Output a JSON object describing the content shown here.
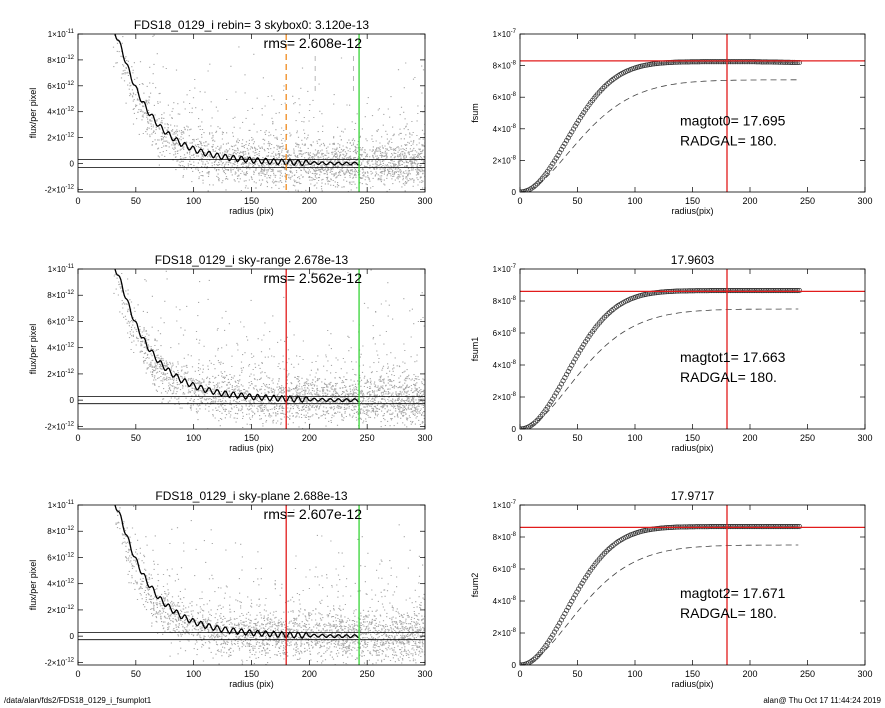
{
  "footer": {
    "left": "/data/alan/fds2/FDS18_0129_i_fsumplot1",
    "right": "alan@  Thu Oct 17 11:44:24 2019"
  },
  "colors": {
    "scatter": "#a8a8a8",
    "profile": "#000000",
    "red": "#e21b1b",
    "green": "#35d435",
    "orange": "#f08a1e"
  },
  "chart_data": [
    {
      "type": "scatter",
      "panel": "profile-1",
      "title": "FDS18_0129_i rebin= 3    skybox0:  3.120e-13",
      "annotation": "rms= 2.608e-12",
      "xlabel": "radius (pix)",
      "ylabel": "flux/per pixel",
      "xlim": [
        0,
        300
      ],
      "ylim": [
        -2.2e-12,
        1e-11
      ],
      "xticks": [
        "0",
        "50",
        "100",
        "150",
        "200",
        "250",
        "300"
      ],
      "yticks": [
        {
          "v": 1e-11,
          "m": "1×10",
          "e": "-11"
        },
        {
          "v": 8e-12,
          "m": "8×10",
          "e": "-12"
        },
        {
          "v": 6e-12,
          "m": "6×10",
          "e": "-12"
        },
        {
          "v": 4e-12,
          "m": "4×10",
          "e": "-12"
        },
        {
          "v": 2e-12,
          "m": "2×10",
          "e": "-12"
        },
        {
          "v": 0,
          "m": "0",
          "e": ""
        },
        {
          "v": -2e-12,
          "m": "-2×10",
          "e": "-12"
        }
      ],
      "sky_lines": [
        3.1e-13,
        -3.1e-13
      ],
      "vlines": [
        {
          "x": 180,
          "color": "orange",
          "style": "dashed"
        },
        {
          "x": 243,
          "color": "green",
          "style": "solid"
        }
      ],
      "profile": {
        "x": [
          30,
          35,
          40,
          45,
          50,
          55,
          60,
          70,
          80,
          90,
          100,
          110,
          120,
          130,
          140,
          150,
          160,
          170,
          180,
          200,
          220,
          243
        ],
        "y": [
          1.05e-11,
          9.5e-12,
          8.2e-12,
          6.9e-12,
          5.8e-12,
          4.9e-12,
          4.1e-12,
          2.9e-12,
          2.1e-12,
          1.5e-12,
          1.1e-12,
          8e-13,
          6e-13,
          4.5e-13,
          3.5e-13,
          2.5e-13,
          2e-13,
          1.5e-13,
          1e-13,
          5e-14,
          0,
          0
        ]
      }
    },
    {
      "type": "line",
      "panel": "fsum-1",
      "title": "",
      "xlabel": "radius(pix)",
      "ylabel": "fsum",
      "xlim": [
        0,
        300
      ],
      "ylim": [
        0,
        1e-07
      ],
      "xticks": [
        "0",
        "50",
        "100",
        "150",
        "200",
        "250",
        "300"
      ],
      "yticks": [
        {
          "v": 1e-07,
          "m": "1×10",
          "e": "-7"
        },
        {
          "v": 8e-08,
          "m": "8×10",
          "e": "-8"
        },
        {
          "v": 6e-08,
          "m": "6×10",
          "e": "-8"
        },
        {
          "v": 4e-08,
          "m": "4×10",
          "e": "-8"
        },
        {
          "v": 2e-08,
          "m": "2×10",
          "e": "-8"
        },
        {
          "v": 0,
          "m": "0",
          "e": ""
        }
      ],
      "hline": 8.3e-08,
      "vline": 180,
      "annotations": [
        "magtot0=  17.695",
        "RADGAL=    180."
      ],
      "curve_final": 8.25e-08,
      "curve_peak_r": 200,
      "dashed_final": 7.1e-08,
      "end_x": 243
    },
    {
      "type": "scatter",
      "panel": "profile-2",
      "title": "FDS18_0129_i sky-range  2.678e-13",
      "annotation": "rms= 2.562e-12",
      "xlabel": "radius (pix)",
      "ylabel": "flux/per pixel",
      "xlim": [
        0,
        300
      ],
      "ylim": [
        -2.2e-12,
        1e-11
      ],
      "xticks": [
        "0",
        "50",
        "100",
        "150",
        "200",
        "250",
        "300"
      ],
      "yticks": [
        {
          "v": 1e-11,
          "m": "1×10",
          "e": "-11"
        },
        {
          "v": 8e-12,
          "m": "8×10",
          "e": "-12"
        },
        {
          "v": 6e-12,
          "m": "6×10",
          "e": "-12"
        },
        {
          "v": 4e-12,
          "m": "4×10",
          "e": "-12"
        },
        {
          "v": 2e-12,
          "m": "2×10",
          "e": "-12"
        },
        {
          "v": 0,
          "m": "0",
          "e": ""
        },
        {
          "v": -2e-12,
          "m": "-2×10",
          "e": "-12"
        }
      ],
      "sky_lines": [
        2.7e-13,
        -2.7e-13
      ],
      "vlines": [
        {
          "x": 180,
          "color": "red",
          "style": "solid"
        },
        {
          "x": 243,
          "color": "green",
          "style": "solid"
        }
      ],
      "profile": {
        "x": [
          30,
          35,
          40,
          45,
          50,
          55,
          60,
          70,
          80,
          90,
          100,
          110,
          120,
          130,
          140,
          150,
          160,
          170,
          180,
          200,
          220,
          243
        ],
        "y": [
          1.05e-11,
          9.5e-12,
          8.2e-12,
          6.9e-12,
          5.8e-12,
          4.9e-12,
          4.1e-12,
          2.9e-12,
          2.1e-12,
          1.5e-12,
          1.1e-12,
          8e-13,
          6e-13,
          4.5e-13,
          3.5e-13,
          2.5e-13,
          2e-13,
          1.5e-13,
          1e-13,
          5e-14,
          0,
          0
        ]
      }
    },
    {
      "type": "line",
      "panel": "fsum-2",
      "title": "17.9603",
      "xlabel": "radius(pix)",
      "ylabel": "fsum1",
      "xlim": [
        0,
        300
      ],
      "ylim": [
        0,
        1e-07
      ],
      "xticks": [
        "0",
        "50",
        "100",
        "150",
        "200",
        "250",
        "300"
      ],
      "yticks": [
        {
          "v": 1e-07,
          "m": "1×10",
          "e": "-7"
        },
        {
          "v": 8e-08,
          "m": "8×10",
          "e": "-8"
        },
        {
          "v": 6e-08,
          "m": "6×10",
          "e": "-8"
        },
        {
          "v": 4e-08,
          "m": "4×10",
          "e": "-8"
        },
        {
          "v": 2e-08,
          "m": "2×10",
          "e": "-8"
        },
        {
          "v": 0,
          "m": "0",
          "e": ""
        }
      ],
      "hline": 8.6e-08,
      "vline": 180,
      "annotations": [
        "magtot1=  17.663",
        "RADGAL=    180."
      ],
      "curve_final": 8.65e-08,
      "curve_peak_r": 243,
      "dashed_final": 7.5e-08,
      "end_x": 243
    },
    {
      "type": "scatter",
      "panel": "profile-3",
      "title": "FDS18_0129_i sky-plane  2.688e-13",
      "annotation": "rms= 2.607e-12",
      "xlabel": "radius (pix)",
      "ylabel": "flux/per pixel",
      "xlim": [
        0,
        300
      ],
      "ylim": [
        -2.2e-12,
        1e-11
      ],
      "xticks": [
        "0",
        "50",
        "100",
        "150",
        "200",
        "250",
        "300"
      ],
      "yticks": [
        {
          "v": 1e-11,
          "m": "1×10",
          "e": "-11"
        },
        {
          "v": 8e-12,
          "m": "8×10",
          "e": "-12"
        },
        {
          "v": 6e-12,
          "m": "6×10",
          "e": "-12"
        },
        {
          "v": 4e-12,
          "m": "4×10",
          "e": "-12"
        },
        {
          "v": 2e-12,
          "m": "2×10",
          "e": "-12"
        },
        {
          "v": 0,
          "m": "0",
          "e": ""
        },
        {
          "v": -2e-12,
          "m": "-2×10",
          "e": "-12"
        }
      ],
      "sky_lines": [
        2.7e-13,
        -2.7e-13
      ],
      "vlines": [
        {
          "x": 180,
          "color": "red",
          "style": "solid"
        },
        {
          "x": 243,
          "color": "green",
          "style": "solid"
        }
      ],
      "profile": {
        "x": [
          30,
          35,
          40,
          45,
          50,
          55,
          60,
          70,
          80,
          90,
          100,
          110,
          120,
          130,
          140,
          150,
          160,
          170,
          180,
          200,
          220,
          243
        ],
        "y": [
          1.05e-11,
          9.5e-12,
          8.2e-12,
          6.9e-12,
          5.8e-12,
          4.9e-12,
          4.1e-12,
          2.9e-12,
          2.1e-12,
          1.5e-12,
          1.1e-12,
          8e-13,
          6e-13,
          4.5e-13,
          3.5e-13,
          2.5e-13,
          2e-13,
          1.5e-13,
          1e-13,
          5e-14,
          0,
          0
        ]
      }
    },
    {
      "type": "line",
      "panel": "fsum-3",
      "title": "17.9717",
      "xlabel": "radius(pix)",
      "ylabel": "fsum2",
      "xlim": [
        0,
        300
      ],
      "ylim": [
        0,
        1e-07
      ],
      "xticks": [
        "0",
        "50",
        "100",
        "150",
        "200",
        "250",
        "300"
      ],
      "yticks": [
        {
          "v": 1e-07,
          "m": "1×10",
          "e": "-7"
        },
        {
          "v": 8e-08,
          "m": "8×10",
          "e": "-8"
        },
        {
          "v": 6e-08,
          "m": "6×10",
          "e": "-8"
        },
        {
          "v": 4e-08,
          "m": "4×10",
          "e": "-8"
        },
        {
          "v": 2e-08,
          "m": "2×10",
          "e": "-8"
        },
        {
          "v": 0,
          "m": "0",
          "e": ""
        }
      ],
      "hline": 8.6e-08,
      "vline": 180,
      "annotations": [
        "magtot2=  17.671",
        "RADGAL=    180."
      ],
      "curve_final": 8.65e-08,
      "curve_peak_r": 243,
      "dashed_final": 7.5e-08,
      "end_x": 243
    }
  ]
}
